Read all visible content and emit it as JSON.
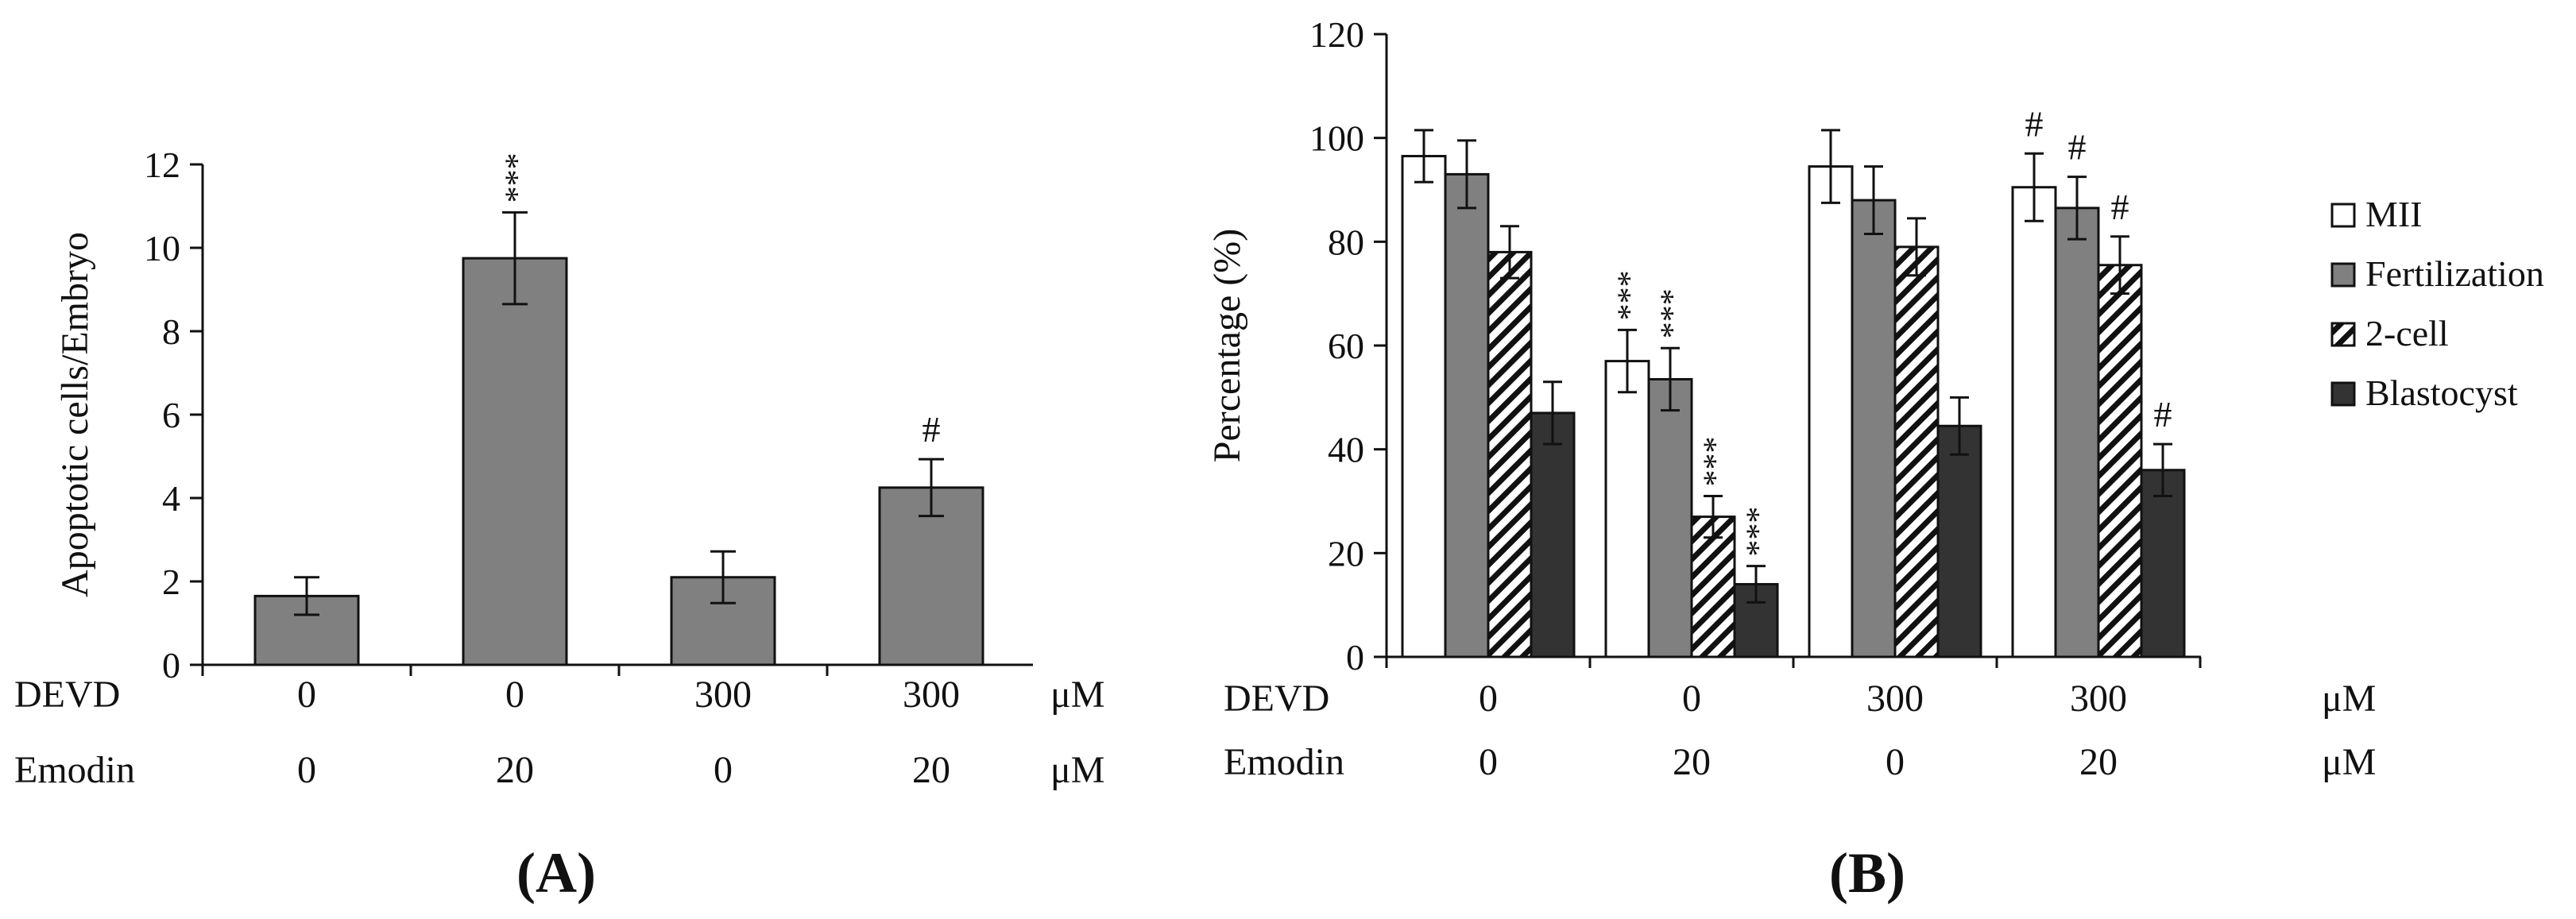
{
  "chart_data": [
    {
      "type": "bar",
      "panel_label": "A",
      "ylabel": "Apoptotic cells/Embryo",
      "ylim": [
        0,
        12
      ],
      "yticks": [
        0,
        2,
        4,
        6,
        8,
        10,
        12
      ],
      "conditions": {
        "rows": [
          {
            "label": "DEVD",
            "values": [
              "0",
              "0",
              "300",
              "300"
            ],
            "unit": "μM"
          },
          {
            "label": "Emodin",
            "values": [
              "0",
              "20",
              "0",
              "20"
            ],
            "unit": "μM"
          }
        ]
      },
      "series": [
        {
          "name": "Apoptotic cells/Embryo",
          "color": "#808080",
          "values": [
            1.65,
            9.75,
            2.1,
            4.25
          ],
          "errors": [
            0.45,
            1.1,
            0.62,
            0.68
          ],
          "annotations": [
            "",
            "***",
            "",
            "#"
          ]
        }
      ]
    },
    {
      "type": "bar",
      "panel_label": "B",
      "ylabel": "Percentage (%)",
      "ylim": [
        0,
        120
      ],
      "yticks": [
        0,
        20,
        40,
        60,
        80,
        100,
        120
      ],
      "legend_position": "right",
      "conditions": {
        "rows": [
          {
            "label": "DEVD",
            "values": [
              "0",
              "0",
              "300",
              "300"
            ],
            "unit": "μM"
          },
          {
            "label": "Emodin",
            "values": [
              "0",
              "20",
              "0",
              "20"
            ],
            "unit": "μM"
          }
        ]
      },
      "series": [
        {
          "name": "MII",
          "pattern": "white",
          "values": [
            96.5,
            57,
            94.5,
            90.5
          ],
          "errors": [
            5,
            6,
            7,
            6.5
          ],
          "annotations": [
            "",
            "***",
            "",
            "#"
          ]
        },
        {
          "name": "Fertilization",
          "pattern": "gray",
          "values": [
            93,
            53.5,
            88,
            86.5
          ],
          "errors": [
            6.5,
            6,
            6.5,
            6
          ],
          "annotations": [
            "",
            "***",
            "",
            "#"
          ]
        },
        {
          "name": "2-cell",
          "pattern": "hatch",
          "values": [
            78,
            27,
            79,
            75.5
          ],
          "errors": [
            5,
            4,
            5.5,
            5.5
          ],
          "annotations": [
            "",
            "***",
            "",
            "#"
          ]
        },
        {
          "name": "Blastocyst",
          "pattern": "dark",
          "values": [
            47,
            14,
            44.5,
            36
          ],
          "errors": [
            6,
            3.5,
            5.5,
            5
          ],
          "annotations": [
            "",
            "***",
            "",
            "#"
          ]
        }
      ]
    }
  ]
}
